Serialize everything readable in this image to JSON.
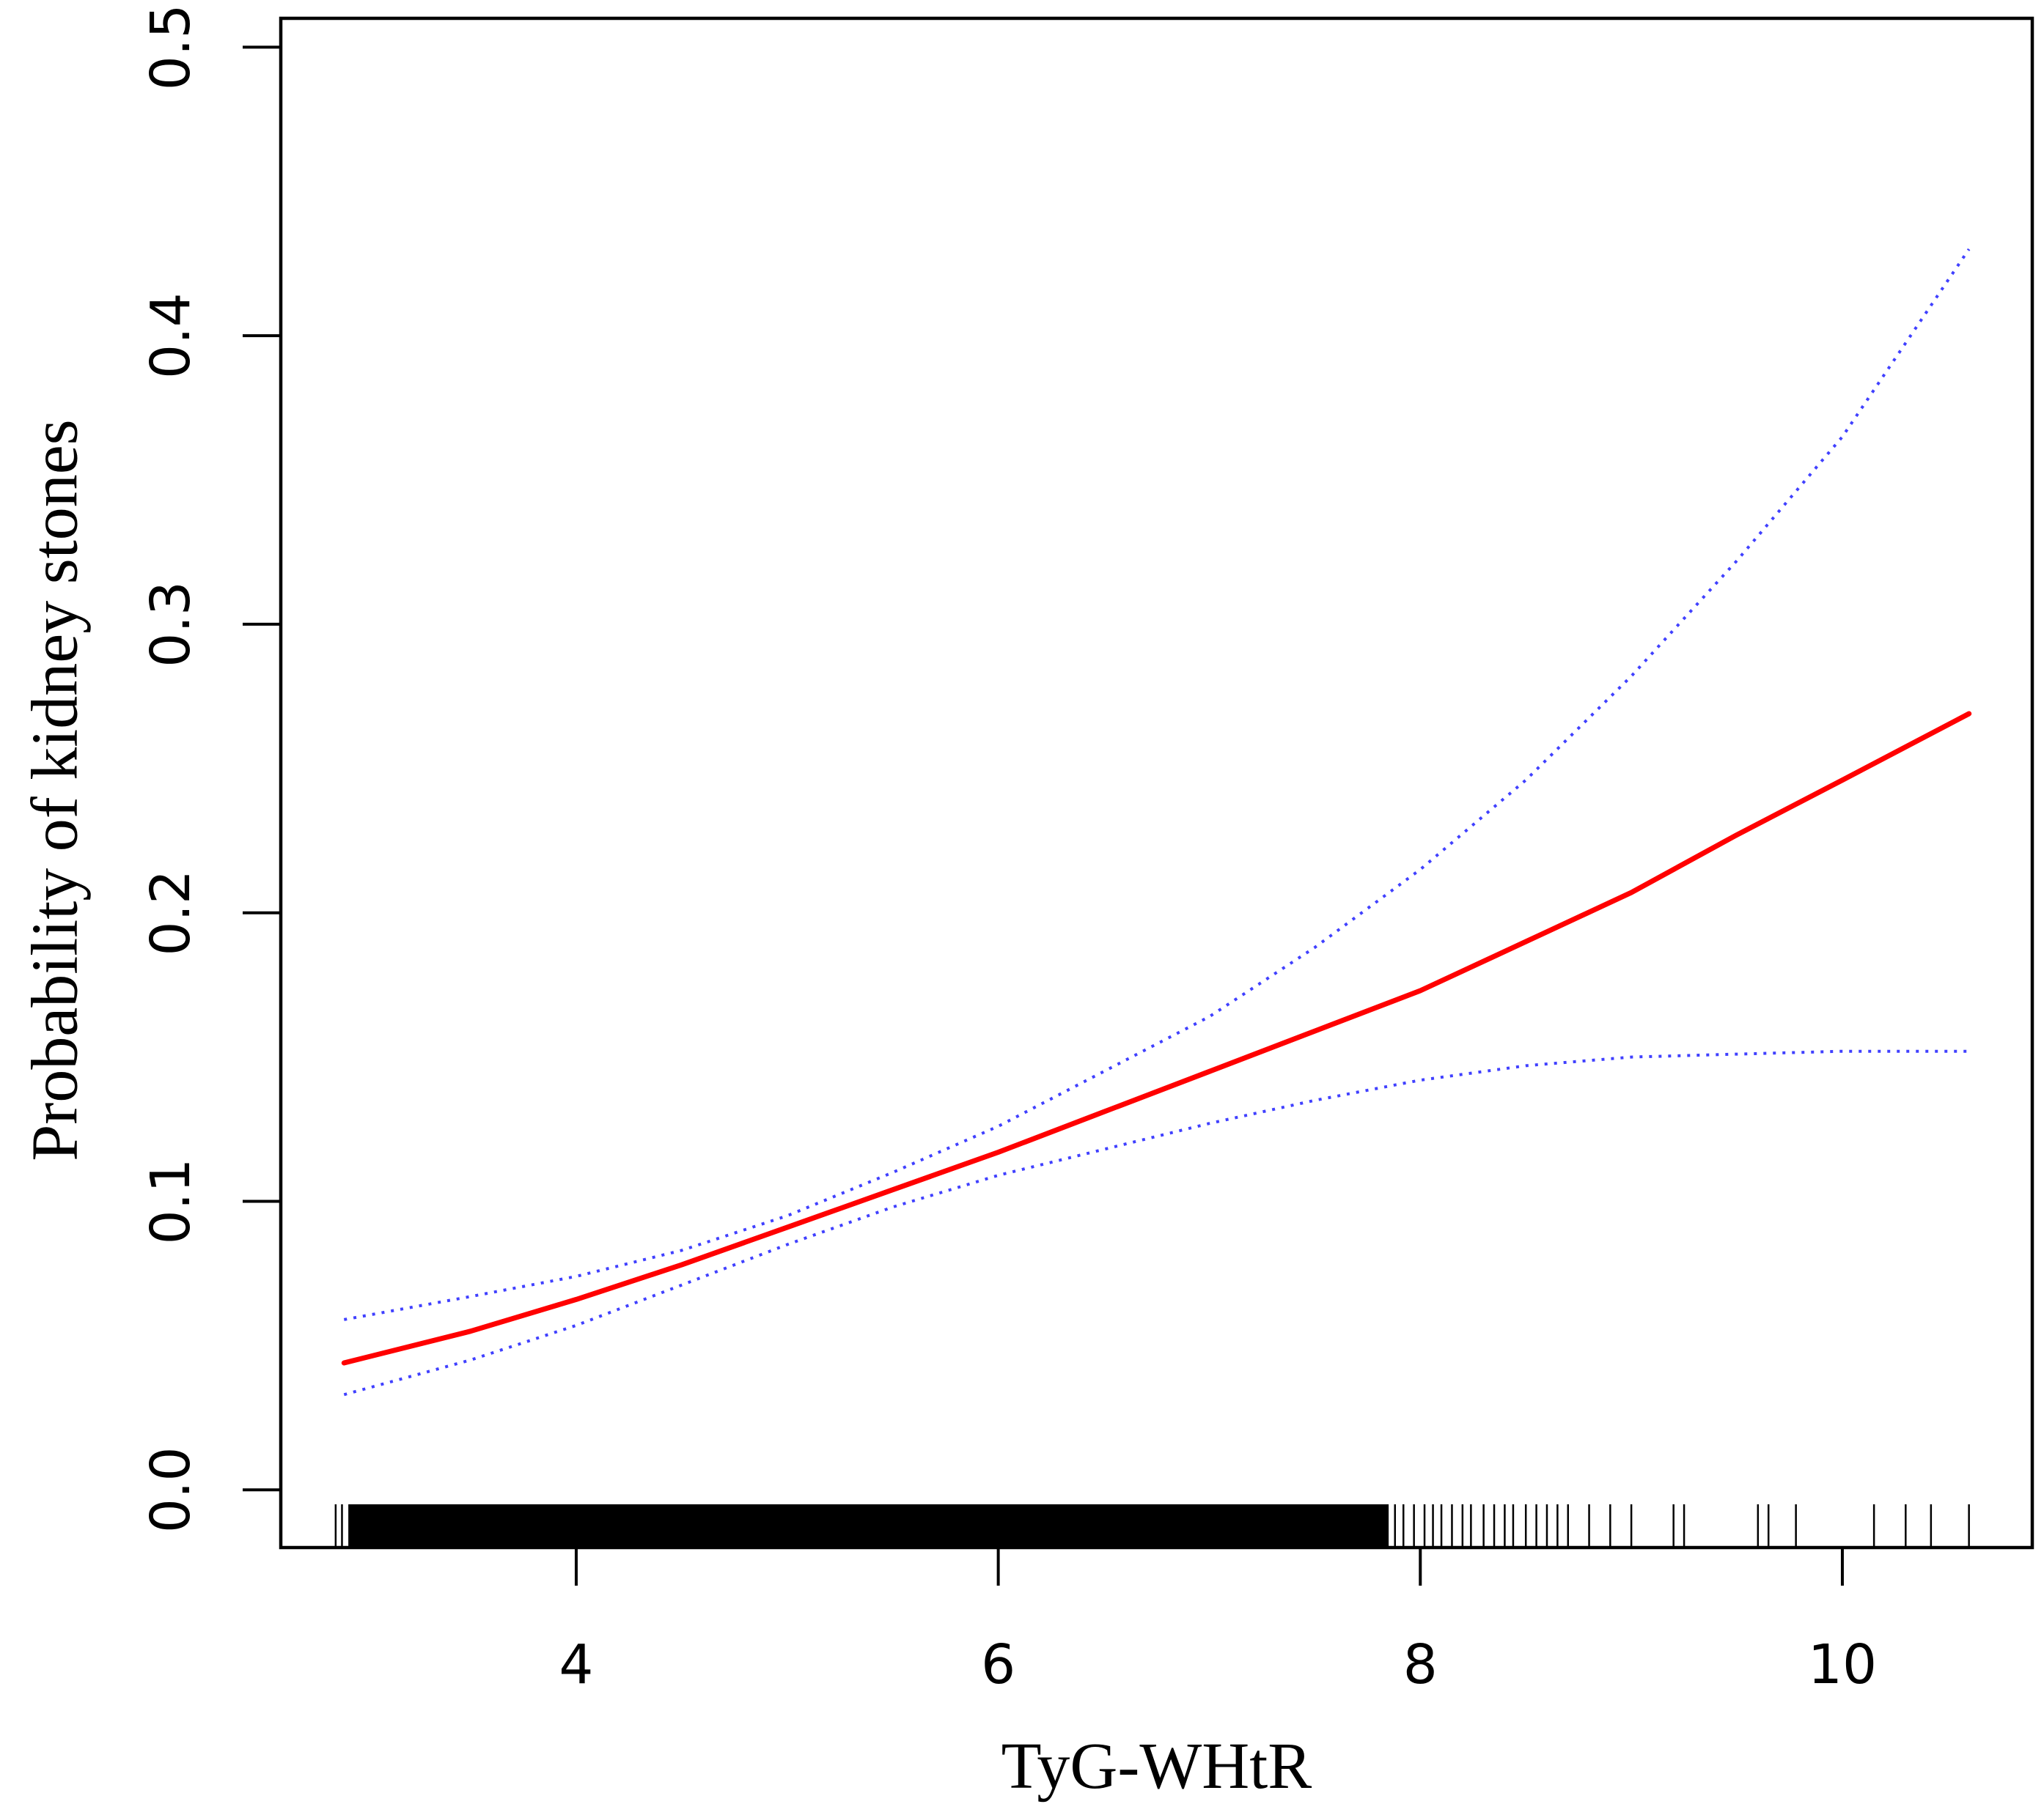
{
  "chart_data": {
    "type": "line",
    "title": "",
    "xlabel": "TyG-WHtR",
    "ylabel": "Probability of kidney stones",
    "xlim": [
      2.6,
      10.9
    ],
    "ylim": [
      -0.02,
      0.51
    ],
    "x_ticks": [
      4,
      6,
      8,
      10
    ],
    "x_tick_labels": [
      "4",
      "6",
      "8",
      "10"
    ],
    "y_ticks": [
      0.0,
      0.1,
      0.2,
      0.3,
      0.4,
      0.5
    ],
    "y_tick_labels": [
      "0.0",
      "0.1",
      "0.2",
      "0.3",
      "0.4",
      "0.5"
    ],
    "grid": false,
    "legend": "none",
    "series": [
      {
        "role": "estimate",
        "color": "#ff0000",
        "style": "solid",
        "x": [
          2.9,
          3.5,
          4.0,
          4.5,
          5.0,
          5.5,
          6.0,
          6.5,
          7.0,
          7.5,
          8.0,
          8.5,
          9.0,
          9.5,
          10.0,
          10.6
        ],
        "y": [
          0.044,
          0.055,
          0.066,
          0.078,
          0.091,
          0.104,
          0.117,
          0.131,
          0.145,
          0.159,
          0.173,
          0.19,
          0.207,
          0.227,
          0.246,
          0.269
        ]
      },
      {
        "role": "upper-ci",
        "color": "#4040ff",
        "style": "dotted",
        "x": [
          2.9,
          3.5,
          4.0,
          4.5,
          5.0,
          5.5,
          6.0,
          6.5,
          7.0,
          7.5,
          8.0,
          8.5,
          9.0,
          9.5,
          10.0,
          10.6
        ],
        "y": [
          0.059,
          0.067,
          0.074,
          0.083,
          0.095,
          0.11,
          0.126,
          0.145,
          0.164,
          0.188,
          0.215,
          0.246,
          0.282,
          0.322,
          0.365,
          0.43
        ]
      },
      {
        "role": "lower-ci",
        "color": "#4040ff",
        "style": "dotted",
        "x": [
          2.9,
          3.5,
          4.0,
          4.5,
          5.0,
          5.5,
          6.0,
          6.5,
          7.0,
          7.5,
          8.0,
          8.5,
          9.0,
          9.5,
          10.0,
          10.6
        ],
        "y": [
          0.033,
          0.045,
          0.057,
          0.071,
          0.085,
          0.098,
          0.109,
          0.118,
          0.127,
          0.135,
          0.142,
          0.147,
          0.15,
          0.151,
          0.152,
          0.152
        ]
      }
    ],
    "rug": {
      "color": "#000000",
      "dense_ranges": [
        [
          2.92,
          7.85
        ]
      ],
      "sparse_x": [
        7.88,
        7.92,
        7.97,
        8.02,
        8.06,
        8.1,
        8.15,
        8.2,
        8.24,
        8.3,
        8.35,
        8.4,
        8.44,
        8.5,
        8.55,
        8.6,
        8.65,
        8.7,
        8.8,
        8.9,
        9.0,
        9.2,
        9.25,
        9.6,
        9.65,
        9.78,
        10.15,
        10.3,
        10.42,
        10.6
      ]
    }
  }
}
